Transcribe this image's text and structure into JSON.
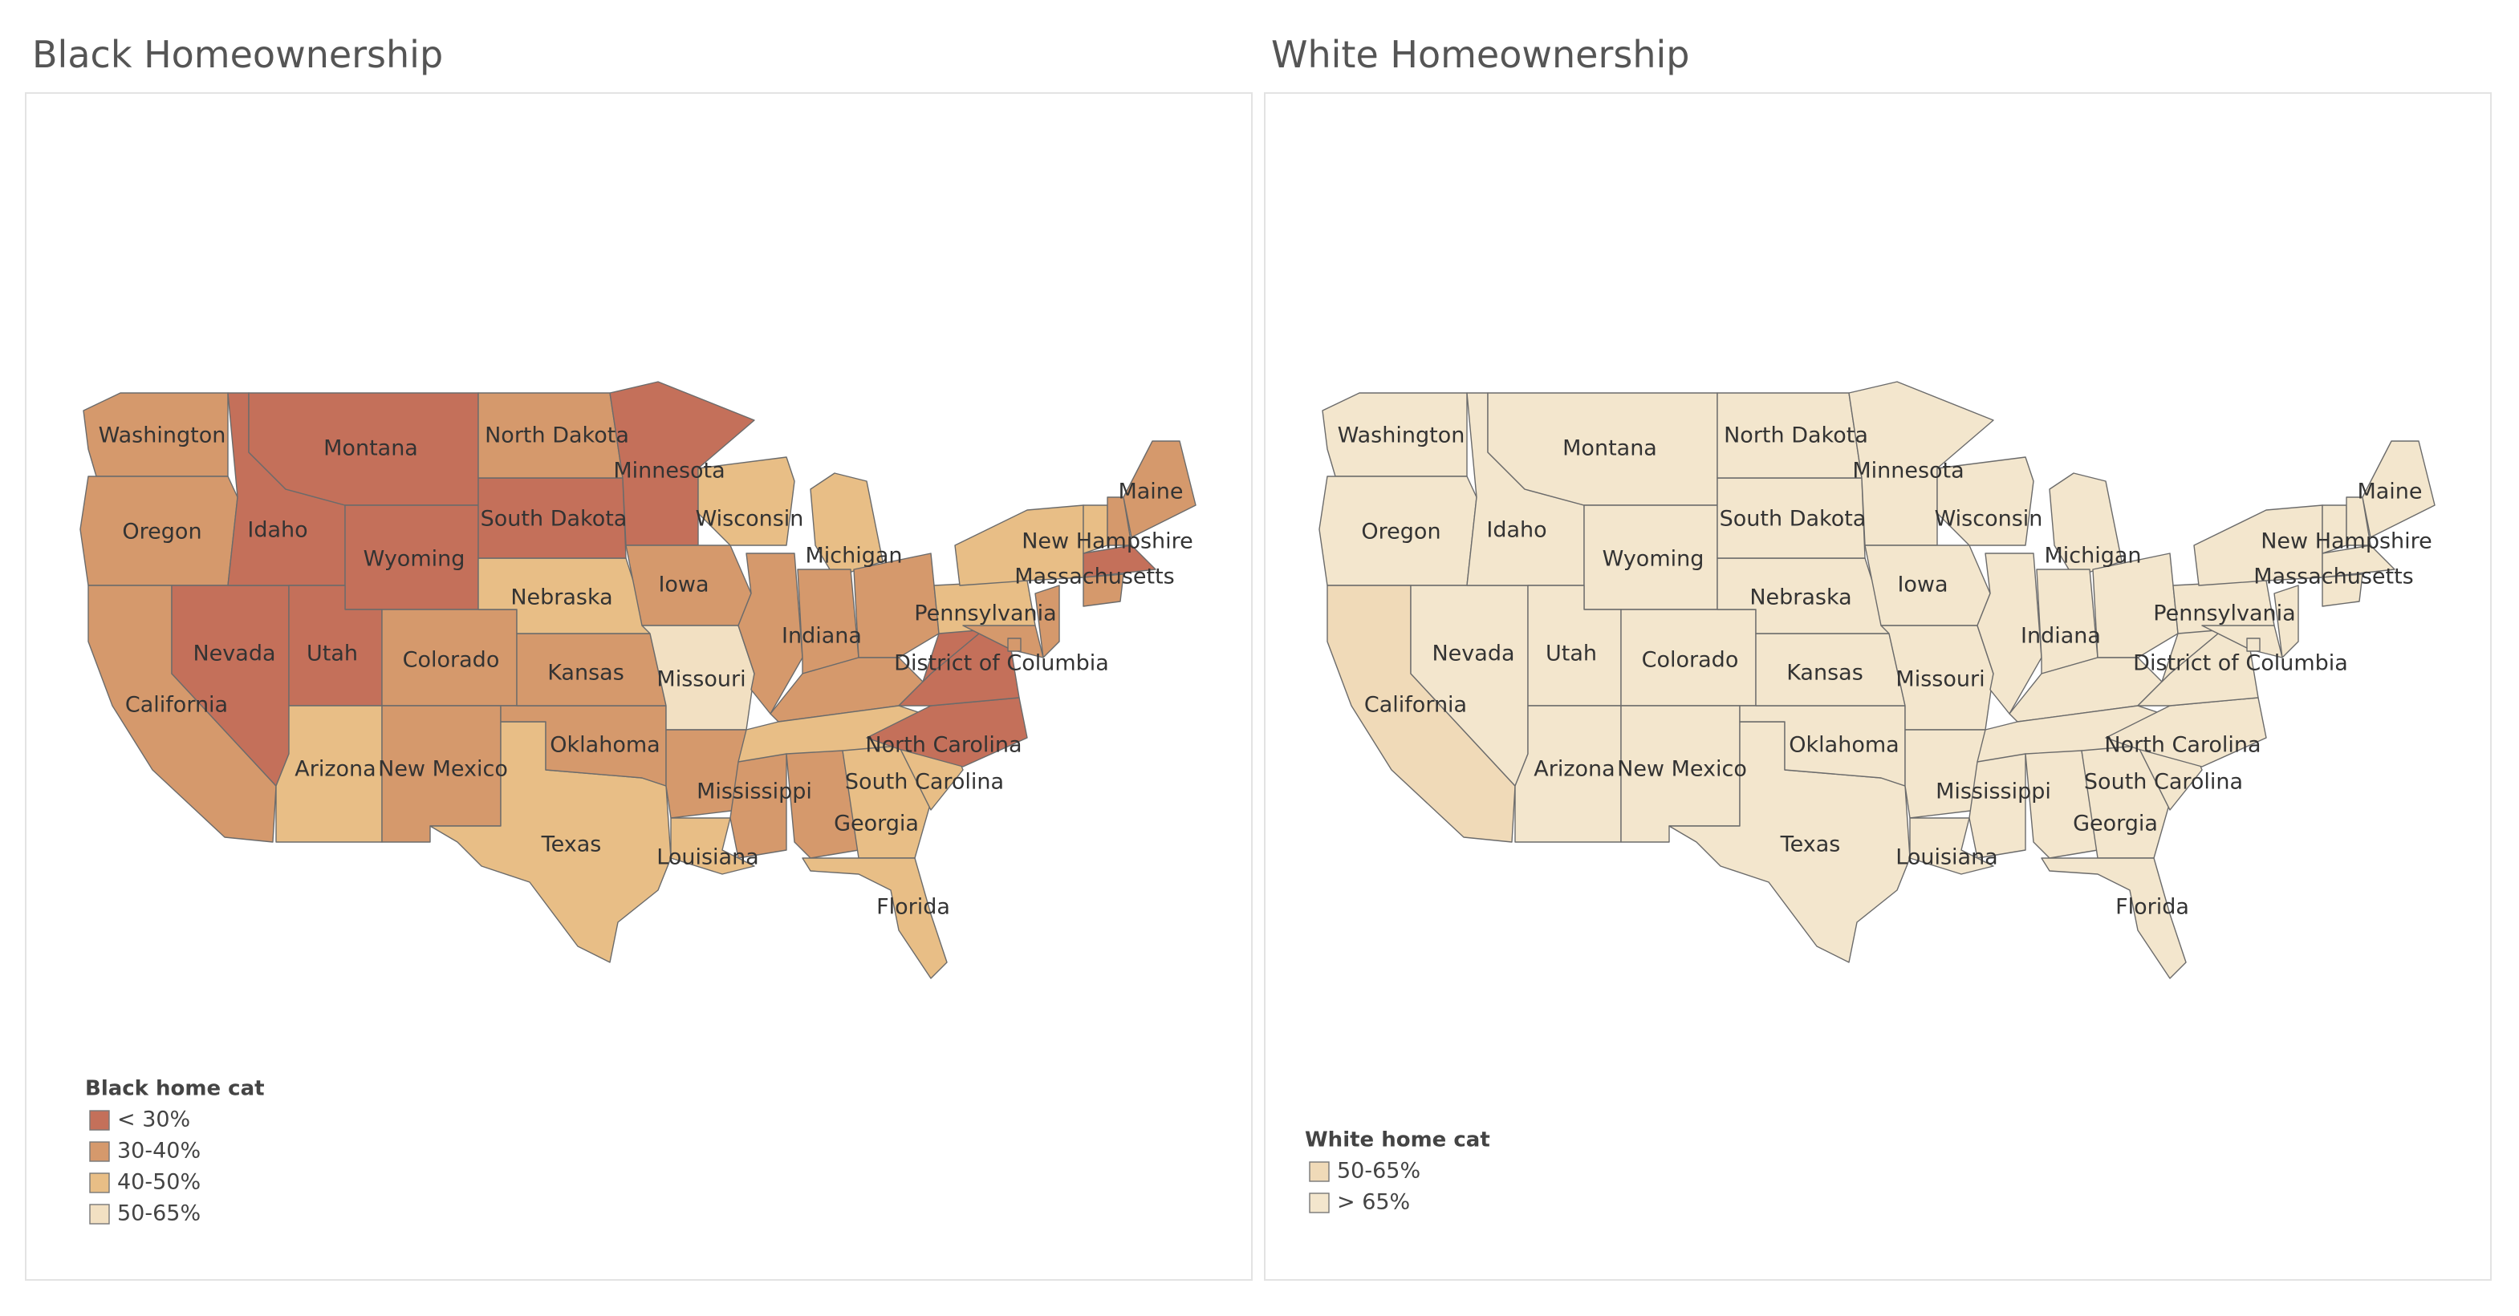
{
  "panels": [
    {
      "title": "Black Homeownership",
      "legend": {
        "title": "Black home cat",
        "items": [
          {
            "label": "< 30%",
            "color": "#c4705a"
          },
          {
            "label": "30-40%",
            "color": "#d5996c"
          },
          {
            "label": "40-50%",
            "color": "#e8be86"
          },
          {
            "label": "50-65%",
            "color": "#f2e0c2"
          }
        ]
      },
      "states": [
        {
          "name": "Washington",
          "category": "30-40%"
        },
        {
          "name": "Oregon",
          "category": "30-40%"
        },
        {
          "name": "California",
          "category": "30-40%"
        },
        {
          "name": "Nevada",
          "category": "< 30%"
        },
        {
          "name": "Idaho",
          "category": "< 30%"
        },
        {
          "name": "Montana",
          "category": "< 30%"
        },
        {
          "name": "Wyoming",
          "category": "< 30%"
        },
        {
          "name": "Utah",
          "category": "< 30%"
        },
        {
          "name": "Colorado",
          "category": "30-40%"
        },
        {
          "name": "Arizona",
          "category": "40-50%"
        },
        {
          "name": "New Mexico",
          "category": "30-40%"
        },
        {
          "name": "Texas",
          "category": "40-50%"
        },
        {
          "name": "Oklahoma",
          "category": "30-40%"
        },
        {
          "name": "Kansas",
          "category": "30-40%"
        },
        {
          "name": "Nebraska",
          "category": "40-50%"
        },
        {
          "name": "South Dakota",
          "category": "< 30%"
        },
        {
          "name": "North Dakota",
          "category": "30-40%"
        },
        {
          "name": "Minnesota",
          "category": "< 30%"
        },
        {
          "name": "Iowa",
          "category": "30-40%"
        },
        {
          "name": "Missouri",
          "category": "50-65%"
        },
        {
          "name": null,
          "category": "30-40%"
        },
        {
          "name": "Louisiana",
          "category": "40-50%"
        },
        {
          "name": "Wisconsin",
          "category": "40-50%"
        },
        {
          "name": "Michigan",
          "category": "40-50%"
        },
        {
          "name": null,
          "category": "30-40%"
        },
        {
          "name": "Indiana",
          "category": "30-40%"
        },
        {
          "name": null,
          "category": "30-40%"
        },
        {
          "name": null,
          "category": "30-40%"
        },
        {
          "name": null,
          "category": "40-50%"
        },
        {
          "name": "Mississippi",
          "category": "30-40%"
        },
        {
          "name": null,
          "category": "30-40%"
        },
        {
          "name": "Georgia",
          "category": "40-50%"
        },
        {
          "name": "Florida",
          "category": "40-50%"
        },
        {
          "name": "South Carolina",
          "category": "40-50%"
        },
        {
          "name": "North Carolina",
          "category": "< 30%"
        },
        {
          "name": null,
          "category": "< 30%"
        },
        {
          "name": null,
          "category": "< 30%"
        },
        {
          "name": "Pennsylvania",
          "category": "40-50%"
        },
        {
          "name": null,
          "category": "40-50%"
        },
        {
          "name": null,
          "category": "30-40%"
        },
        {
          "name": null,
          "category": "30-40%"
        },
        {
          "name": null,
          "category": "40-50%"
        },
        {
          "name": "New Hampshire",
          "category": "30-40%"
        },
        {
          "name": "Maine",
          "category": "30-40%"
        },
        {
          "name": "Massachusetts",
          "category": "< 30%"
        },
        {
          "name": null,
          "category": "30-40%"
        },
        {
          "name": "District of Columbia",
          "category": "30-40%"
        }
      ]
    },
    {
      "title": "White Homeownership",
      "legend": {
        "title": "White home cat",
        "items": [
          {
            "label": "50-65%",
            "color": "#f0dab8"
          },
          {
            "label": "> 65%",
            "color": "#f3e6cd"
          }
        ]
      },
      "states": [
        {
          "name": "Washington",
          "category": "> 65%"
        },
        {
          "name": "Oregon",
          "category": "> 65%"
        },
        {
          "name": "California",
          "category": "50-65%"
        },
        {
          "name": "Nevada",
          "category": "> 65%"
        },
        {
          "name": "Idaho",
          "category": "> 65%"
        },
        {
          "name": "Montana",
          "category": "> 65%"
        },
        {
          "name": "Wyoming",
          "category": "> 65%"
        },
        {
          "name": "Utah",
          "category": "> 65%"
        },
        {
          "name": "Colorado",
          "category": "> 65%"
        },
        {
          "name": "Arizona",
          "category": "> 65%"
        },
        {
          "name": "New Mexico",
          "category": "> 65%"
        },
        {
          "name": "Texas",
          "category": "> 65%"
        },
        {
          "name": "Oklahoma",
          "category": "> 65%"
        },
        {
          "name": "Kansas",
          "category": "> 65%"
        },
        {
          "name": "Nebraska",
          "category": "> 65%"
        },
        {
          "name": "South Dakota",
          "category": "> 65%"
        },
        {
          "name": "North Dakota",
          "category": "> 65%"
        },
        {
          "name": "Minnesota",
          "category": "> 65%"
        },
        {
          "name": "Iowa",
          "category": "> 65%"
        },
        {
          "name": "Missouri",
          "category": "> 65%"
        },
        {
          "name": null,
          "category": "> 65%"
        },
        {
          "name": "Louisiana",
          "category": "> 65%"
        },
        {
          "name": "Wisconsin",
          "category": "> 65%"
        },
        {
          "name": "Michigan",
          "category": "> 65%"
        },
        {
          "name": null,
          "category": "> 65%"
        },
        {
          "name": "Indiana",
          "category": "> 65%"
        },
        {
          "name": null,
          "category": "> 65%"
        },
        {
          "name": null,
          "category": "> 65%"
        },
        {
          "name": null,
          "category": "> 65%"
        },
        {
          "name": "Mississippi",
          "category": "> 65%"
        },
        {
          "name": null,
          "category": "> 65%"
        },
        {
          "name": "Georgia",
          "category": "> 65%"
        },
        {
          "name": "Florida",
          "category": "> 65%"
        },
        {
          "name": "South Carolina",
          "category": "> 65%"
        },
        {
          "name": "North Carolina",
          "category": "> 65%"
        },
        {
          "name": null,
          "category": "> 65%"
        },
        {
          "name": null,
          "category": "> 65%"
        },
        {
          "name": "Pennsylvania",
          "category": "> 65%"
        },
        {
          "name": null,
          "category": "> 65%"
        },
        {
          "name": null,
          "category": "> 65%"
        },
        {
          "name": null,
          "category": "> 65%"
        },
        {
          "name": null,
          "category": "> 65%"
        },
        {
          "name": "New Hampshire",
          "category": "> 65%"
        },
        {
          "name": "Maine",
          "category": "> 65%"
        },
        {
          "name": "Massachusetts",
          "category": "> 65%"
        },
        {
          "name": null,
          "category": "> 65%"
        },
        {
          "name": "District of Columbia",
          "category": "> 65%"
        }
      ]
    }
  ]
}
